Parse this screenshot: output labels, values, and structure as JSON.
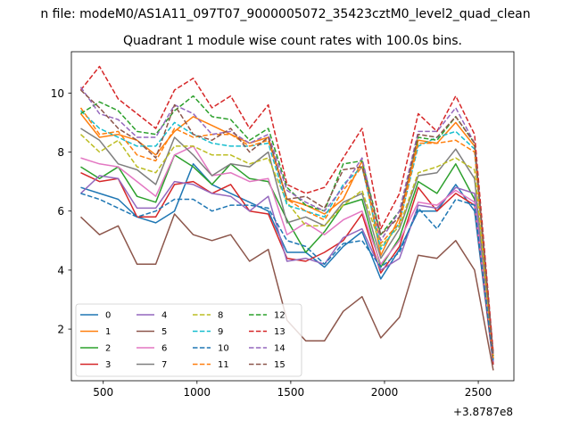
{
  "chart_data": {
    "type": "line",
    "suptitle": "n file: modeM0/AS1A11_097T07_9000005072_35423cztM0_level2_quad_clean",
    "title": "Quadrant 1 module wise count rates with 100.0s bins.",
    "xlabel": "",
    "ylabel": "",
    "offset_label": "+3.8787e8",
    "xlim": [
      330,
      2690
    ],
    "ylim": [
      0.25,
      11.4
    ],
    "xticks": [
      500,
      1000,
      1500,
      2000,
      2500
    ],
    "yticks": [
      2,
      4,
      6,
      8,
      10
    ],
    "x": [
      380,
      480,
      580,
      680,
      780,
      880,
      980,
      1080,
      1180,
      1280,
      1380,
      1480,
      1580,
      1680,
      1780,
      1880,
      1980,
      2080,
      2180,
      2280,
      2380,
      2480,
      2580
    ],
    "series": [
      {
        "name": "0",
        "color": "#1f77b4",
        "dash": false,
        "values": [
          6.8,
          6.6,
          6.4,
          5.8,
          5.6,
          6.0,
          7.6,
          6.9,
          6.6,
          6.3,
          6.0,
          4.6,
          4.6,
          4.1,
          4.8,
          5.3,
          3.7,
          4.7,
          6.0,
          6.0,
          6.9,
          6.0,
          0.8
        ]
      },
      {
        "name": "1",
        "color": "#ff7f0e",
        "dash": false,
        "values": [
          9.3,
          8.5,
          8.6,
          8.4,
          7.9,
          8.7,
          9.2,
          8.9,
          8.6,
          8.3,
          8.5,
          6.4,
          6.2,
          5.9,
          6.4,
          7.7,
          4.5,
          5.8,
          8.4,
          8.3,
          9.0,
          8.2,
          1.0
        ]
      },
      {
        "name": "2",
        "color": "#2ca02c",
        "dash": false,
        "values": [
          7.5,
          7.1,
          7.5,
          6.5,
          6.3,
          7.9,
          7.5,
          6.9,
          7.6,
          7.1,
          7.0,
          5.7,
          4.6,
          5.3,
          6.2,
          6.4,
          4.1,
          5.1,
          7.0,
          6.6,
          7.6,
          6.4,
          1.0
        ]
      },
      {
        "name": "3",
        "color": "#d62728",
        "dash": false,
        "values": [
          7.3,
          7.0,
          7.1,
          5.8,
          5.8,
          6.9,
          7.0,
          6.6,
          6.9,
          6.0,
          5.9,
          4.4,
          4.3,
          4.6,
          5.0,
          5.9,
          3.9,
          4.8,
          6.8,
          6.0,
          6.6,
          6.2,
          0.8
        ]
      },
      {
        "name": "4",
        "color": "#9467bd",
        "dash": false,
        "values": [
          6.6,
          7.2,
          7.1,
          6.1,
          6.1,
          7.0,
          6.9,
          6.6,
          6.5,
          6.0,
          6.5,
          4.3,
          4.4,
          4.2,
          5.1,
          5.4,
          4.0,
          4.4,
          6.2,
          6.1,
          6.8,
          6.6,
          0.9
        ]
      },
      {
        "name": "5",
        "color": "#8c564b",
        "dash": false,
        "values": [
          5.8,
          5.2,
          5.5,
          4.2,
          4.2,
          5.9,
          5.2,
          5.0,
          5.2,
          4.3,
          4.7,
          2.3,
          1.6,
          1.6,
          2.6,
          3.1,
          1.7,
          2.4,
          4.5,
          4.4,
          5.0,
          4.0,
          0.6
        ]
      },
      {
        "name": "6",
        "color": "#e377c2",
        "dash": false,
        "values": [
          7.8,
          7.6,
          7.5,
          7.0,
          6.5,
          7.9,
          8.2,
          7.2,
          7.3,
          7.0,
          7.1,
          5.2,
          5.6,
          5.2,
          5.7,
          6.0,
          4.2,
          5.0,
          6.3,
          6.2,
          6.7,
          6.3,
          1.0
        ]
      },
      {
        "name": "7",
        "color": "#7f7f7f",
        "dash": false,
        "values": [
          8.8,
          8.4,
          7.6,
          7.4,
          6.9,
          8.5,
          7.9,
          7.2,
          7.6,
          7.5,
          8.0,
          5.6,
          5.8,
          5.5,
          6.3,
          6.6,
          4.4,
          5.4,
          7.2,
          7.3,
          8.1,
          7.1,
          1.0
        ]
      },
      {
        "name": "8",
        "color": "#bcbd22",
        "dash": true,
        "values": [
          8.6,
          8.0,
          8.4,
          7.5,
          7.3,
          8.2,
          8.2,
          7.9,
          7.9,
          7.6,
          7.8,
          6.3,
          5.5,
          5.5,
          6.2,
          6.7,
          4.8,
          5.5,
          7.3,
          7.5,
          7.8,
          7.4,
          1.0
        ]
      },
      {
        "name": "9",
        "color": "#17becf",
        "dash": true,
        "values": [
          9.4,
          8.8,
          8.5,
          8.2,
          8.2,
          9.0,
          8.6,
          8.3,
          8.2,
          8.2,
          8.3,
          6.2,
          6.0,
          5.8,
          6.9,
          7.5,
          4.7,
          5.6,
          8.2,
          8.5,
          8.7,
          8.1,
          1.1
        ]
      },
      {
        "name": "10",
        "color": "#1f77b4",
        "dash": true,
        "values": [
          6.6,
          6.4,
          6.1,
          5.8,
          6.0,
          6.4,
          6.4,
          6.0,
          6.2,
          6.2,
          6.1,
          5.0,
          4.8,
          4.2,
          4.9,
          5.0,
          4.1,
          4.6,
          6.1,
          5.4,
          6.4,
          6.2,
          0.9
        ]
      },
      {
        "name": "11",
        "color": "#ff7f0e",
        "dash": true,
        "values": [
          9.5,
          8.6,
          8.7,
          7.9,
          7.7,
          8.8,
          8.5,
          8.6,
          8.6,
          8.2,
          8.4,
          6.4,
          6.0,
          5.7,
          6.7,
          7.5,
          4.9,
          5.6,
          8.3,
          8.3,
          8.4,
          8.0,
          1.0
        ]
      },
      {
        "name": "12",
        "color": "#2ca02c",
        "dash": true,
        "values": [
          9.3,
          9.7,
          9.4,
          8.7,
          8.6,
          9.4,
          9.9,
          9.2,
          9.1,
          8.4,
          8.8,
          6.8,
          6.2,
          6.0,
          7.6,
          7.7,
          5.2,
          6.0,
          8.5,
          8.4,
          9.2,
          8.3,
          1.1
        ]
      },
      {
        "name": "13",
        "color": "#d62728",
        "dash": true,
        "values": [
          10.1,
          10.9,
          9.8,
          9.3,
          8.8,
          10.1,
          10.5,
          9.5,
          9.9,
          8.8,
          9.6,
          6.9,
          6.6,
          6.8,
          7.8,
          8.8,
          5.4,
          6.6,
          9.3,
          8.7,
          9.9,
          8.6,
          1.2
        ]
      },
      {
        "name": "14",
        "color": "#9467bd",
        "dash": true,
        "values": [
          10.2,
          9.3,
          9.1,
          8.5,
          8.5,
          9.6,
          9.3,
          8.6,
          8.7,
          8.3,
          8.6,
          6.7,
          6.3,
          6.0,
          6.8,
          7.8,
          5.0,
          6.0,
          8.7,
          8.7,
          9.5,
          8.3,
          1.1
        ]
      },
      {
        "name": "15",
        "color": "#8c564b",
        "dash": true,
        "values": [
          10.1,
          9.5,
          8.8,
          8.4,
          7.8,
          9.6,
          8.6,
          8.4,
          8.8,
          8.0,
          8.5,
          6.4,
          6.5,
          6.1,
          7.4,
          7.5,
          5.2,
          5.8,
          8.6,
          8.5,
          9.2,
          8.3,
          1.1
        ]
      }
    ],
    "legend": {
      "placement": "lower-left",
      "columns": 4
    }
  }
}
